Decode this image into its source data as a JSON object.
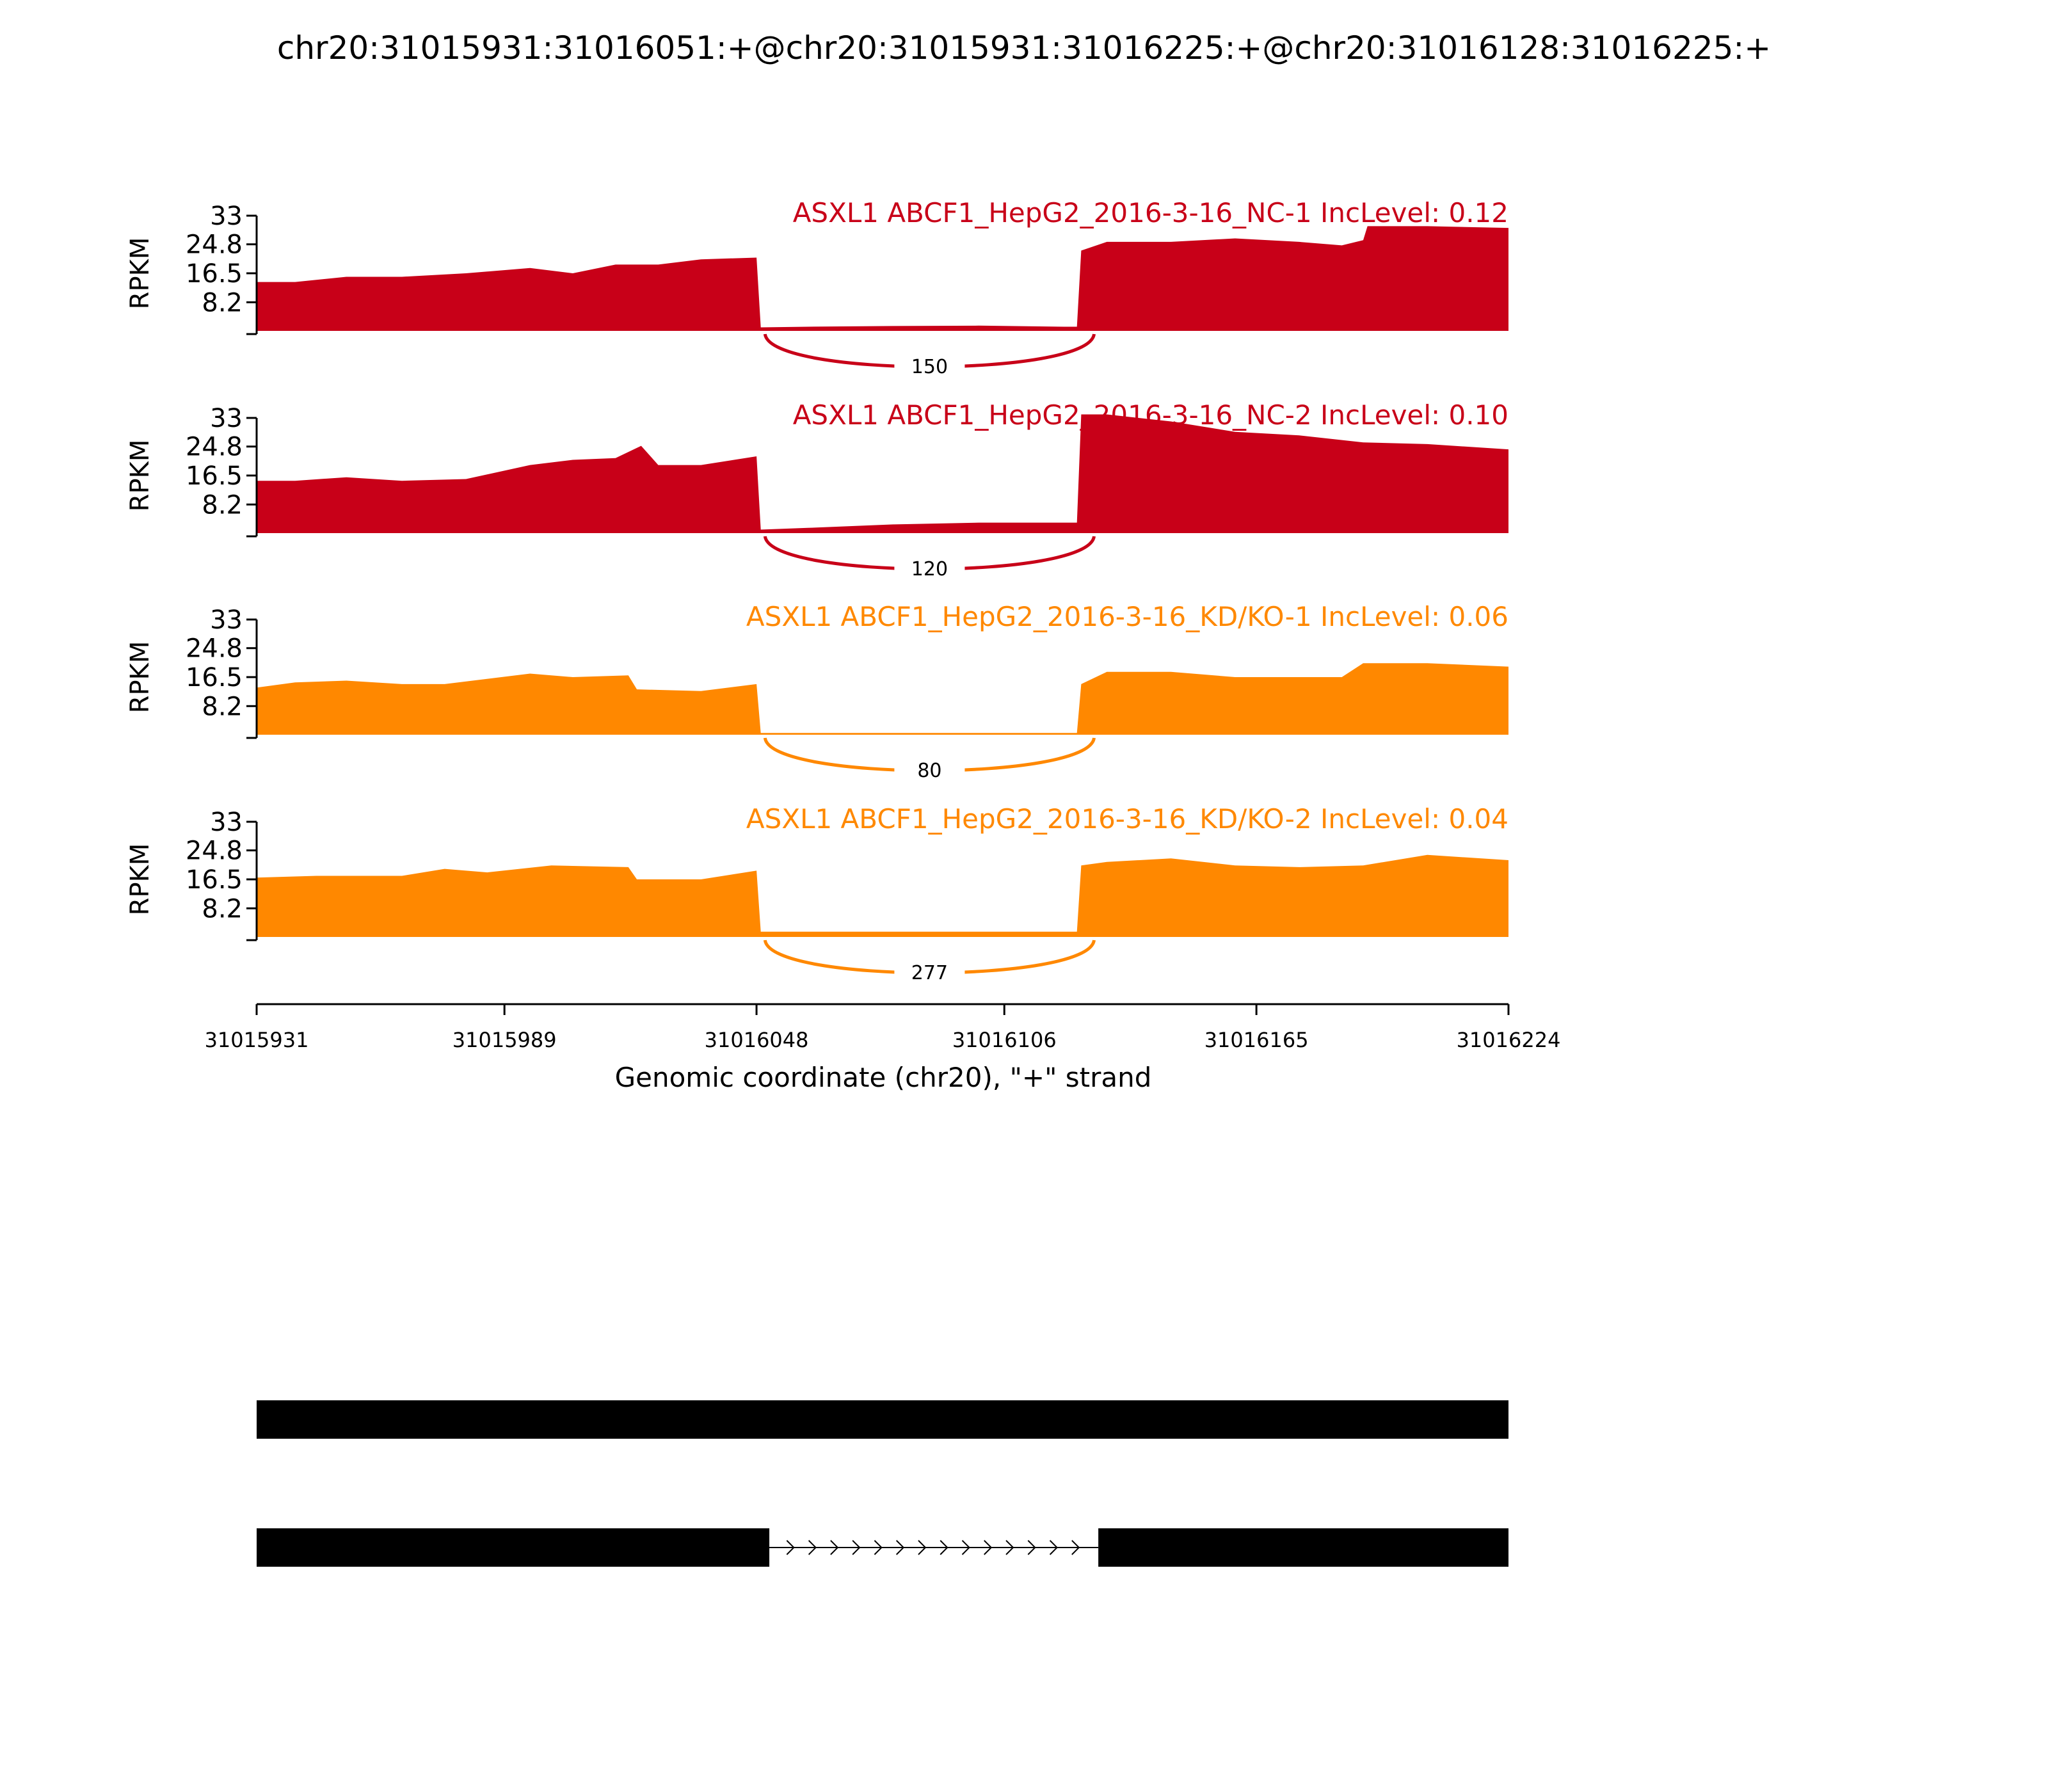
{
  "chart_data": {
    "type": "area",
    "title": "chr20:31015931:31016051:+@chr20:31015931:31016225:+@chr20:31016128:31016225:+",
    "xlabel": "Genomic coordinate (chr20), \"+\" strand",
    "ylabel": "RPKM",
    "xlim": [
      31015931,
      31016224
    ],
    "x_ticks": [
      "31015931",
      "31015989",
      "31016048",
      "31016106",
      "31016165",
      "31016224"
    ],
    "ylim": [
      0,
      33
    ],
    "y_ticks": [
      "8.2",
      "16.5",
      "24.8",
      "33"
    ],
    "colors": {
      "NC": "#c80018",
      "KD": "#ff8800",
      "transcript": "#000000"
    },
    "series": [
      {
        "name": "ASXL1 ABCF1_HepG2_2016-3-16_NC-1 IncLevel: 0.12",
        "group": "NC",
        "junction_count": "150",
        "profile": {
          "x": [
            31015931,
            31015940,
            31015952,
            31015965,
            31015980,
            31015995,
            31016005,
            31016015,
            31016025,
            31016035,
            31016048,
            31016049,
            31016060,
            31016080,
            31016100,
            31016120,
            31016123,
            31016124,
            31016130,
            31016145,
            31016160,
            31016175,
            31016185,
            31016190,
            31016191,
            31016205,
            31016224
          ],
          "y": [
            14,
            14,
            15.5,
            15.5,
            16.5,
            18,
            16.5,
            19,
            19,
            20.5,
            21,
            1,
            1.2,
            1.4,
            1.5,
            1.2,
            1.2,
            23,
            25.5,
            25.5,
            26.5,
            25.5,
            24.5,
            26,
            30,
            30,
            29.5
          ]
        }
      },
      {
        "name": "ASXL1 ABCF1_HepG2_2016-3-16_NC-2 IncLevel: 0.10",
        "group": "NC",
        "junction_count": "120",
        "profile": {
          "x": [
            31015931,
            31015940,
            31015952,
            31015965,
            31015980,
            31015995,
            31016005,
            31016015,
            31016021,
            31016025,
            31016035,
            31016048,
            31016049,
            31016060,
            31016080,
            31016100,
            31016120,
            31016123,
            31016124,
            31016130,
            31016145,
            31016160,
            31016175,
            31016190,
            31016205,
            31016224
          ],
          "y": [
            15,
            15,
            16,
            15,
            15.5,
            19.5,
            21,
            21.5,
            25,
            19.5,
            19.5,
            22,
            1,
            1.5,
            2.5,
            3,
            3,
            3,
            34,
            34,
            32,
            29,
            28,
            26,
            25.5,
            24
          ]
        }
      },
      {
        "name": "ASXL1 ABCF1_HepG2_2016-3-16_KD/KO-1 IncLevel: 0.06",
        "group": "KD",
        "junction_count": "80",
        "profile": {
          "x": [
            31015931,
            31015940,
            31015952,
            31015965,
            31015975,
            31015995,
            31016005,
            31016018,
            31016020,
            31016035,
            31016048,
            31016049,
            31016060,
            31016080,
            31016100,
            31016120,
            31016123,
            31016124,
            31016130,
            31016145,
            31016160,
            31016175,
            31016185,
            31016190,
            31016205,
            31016224
          ],
          "y": [
            13.5,
            15,
            15.5,
            14.5,
            14.5,
            17.5,
            16.5,
            17,
            13,
            12.5,
            14.5,
            0.5,
            0.5,
            0.5,
            0.5,
            0.5,
            0.5,
            14.5,
            18,
            18,
            16.5,
            16.5,
            16.5,
            20.5,
            20.5,
            19.5
          ]
        }
      },
      {
        "name": "ASXL1 ABCF1_HepG2_2016-3-16_KD/KO-2 IncLevel: 0.04",
        "group": "KD",
        "junction_count": "277",
        "profile": {
          "x": [
            31015931,
            31015945,
            31015965,
            31015975,
            31015985,
            31016000,
            31016018,
            31016020,
            31016035,
            31016048,
            31016049,
            31016060,
            31016080,
            31016100,
            31016120,
            31016123,
            31016124,
            31016130,
            31016145,
            31016160,
            31016175,
            31016190,
            31016205,
            31016224
          ],
          "y": [
            17,
            17.5,
            17.5,
            19.5,
            18.5,
            20.5,
            20,
            16.5,
            16.5,
            19,
            1.5,
            1.5,
            1.5,
            1.5,
            1.5,
            1.5,
            20.5,
            21.5,
            22.5,
            20.5,
            20,
            20.5,
            23.5,
            22
          ]
        }
      }
    ],
    "junction": {
      "start": 31016050,
      "end": 31016127
    },
    "transcripts": [
      {
        "exons": [
          [
            31015931,
            31016224
          ]
        ]
      },
      {
        "exons": [
          [
            31015931,
            31016051
          ],
          [
            31016128,
            31016224
          ]
        ]
      }
    ]
  }
}
